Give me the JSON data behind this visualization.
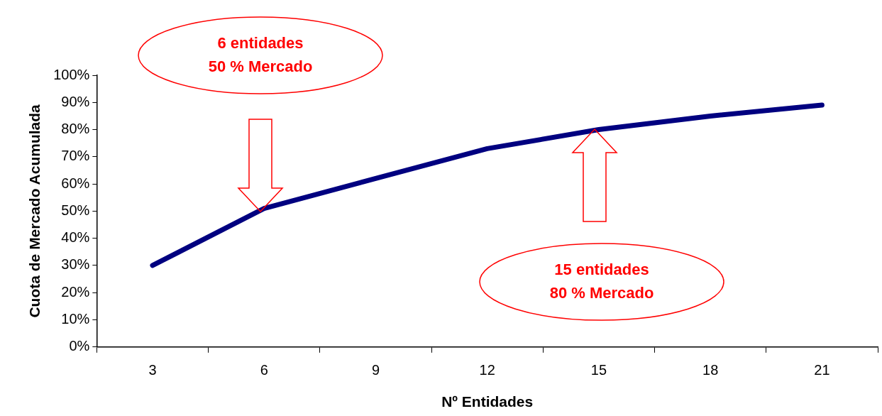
{
  "chart_data": {
    "type": "line",
    "xlabel": "Nº Entidades",
    "ylabel": "Cuota de Mercado Acumulada",
    "categories": [
      "3",
      "6",
      "9",
      "12",
      "15",
      "18",
      "21"
    ],
    "series": [
      {
        "color": "#000080",
        "values": [
          30,
          51,
          62,
          73,
          80,
          85,
          89
        ]
      }
    ],
    "ylim": [
      0,
      100
    ],
    "yticks": [
      {
        "value": 0,
        "label": "0%"
      },
      {
        "value": 10,
        "label": "10%"
      },
      {
        "value": 20,
        "label": "20%"
      },
      {
        "value": 30,
        "label": "30%"
      },
      {
        "value": 40,
        "label": "40%"
      },
      {
        "value": 50,
        "label": "50%"
      },
      {
        "value": 60,
        "label": "60%"
      },
      {
        "value": 70,
        "label": "70%"
      },
      {
        "value": 80,
        "label": "80%"
      },
      {
        "value": 90,
        "label": "90%"
      },
      {
        "value": 100,
        "label": "100%"
      }
    ],
    "grid": false,
    "legend": false,
    "marker": "none",
    "line_style": "solid",
    "annotations": [
      "6 entidades\n50 % Mercado",
      "15 entidades\n80 % Mercado"
    ]
  }
}
